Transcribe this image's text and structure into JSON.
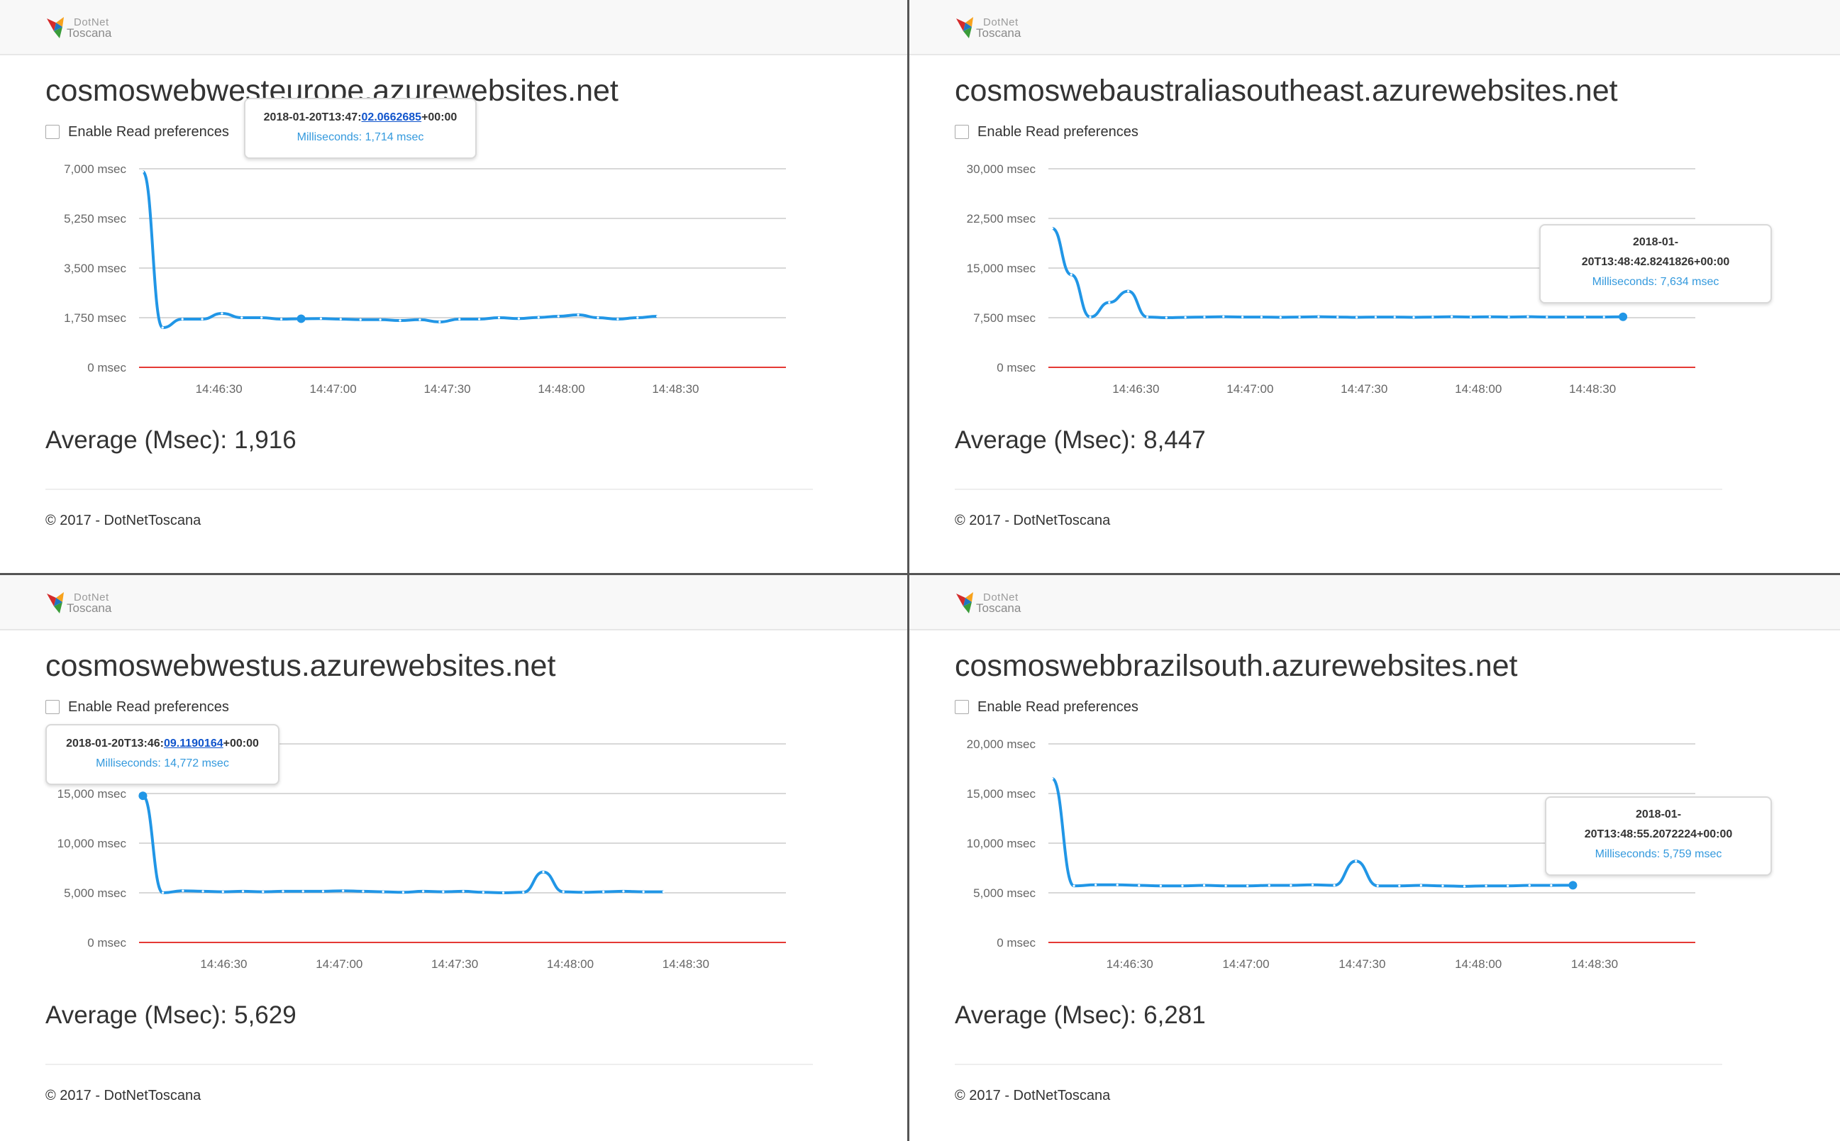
{
  "brand": {
    "top": "DotNet",
    "bottom": "Toscana"
  },
  "checkbox_label": "Enable Read preferences",
  "average_label": "Average (Msec):",
  "footer_text": "© 2017 - DotNetToscana",
  "colors": {
    "line": "#2196e6",
    "baseline": "#e53935",
    "grid": "#cccccc"
  },
  "panels": [
    {
      "title": "cosmoswebwesteurope.azurewebsites.net",
      "average": "1,916",
      "tooltip": {
        "date_prefix": "2018-01-20T13:47:",
        "date_seconds": "02.0662685",
        "date_suffix": "+00:00",
        "value_text": "Milliseconds: 1,714 msec"
      },
      "chart_data": {
        "type": "line",
        "x_start": "14:46:10",
        "x_interval_seconds": 5.2,
        "ylim": [
          0,
          7000
        ],
        "y_ticks": [
          "7,000 msec",
          "5,250 msec",
          "3,500 msec",
          "1,750 msec",
          "0 msec"
        ],
        "x_ticks": [
          "14:46:30",
          "14:47:00",
          "14:47:30",
          "14:48:00",
          "14:48:30"
        ],
        "series": [
          {
            "values": [
              6900,
              1400,
              1700,
              1700,
              1900,
              1750,
              1750,
              1700,
              1714,
              1720,
              1700,
              1680,
              1680,
              1650,
              1680,
              1600,
              1700,
              1700,
              1750,
              1720,
              1760,
              1800,
              1850,
              1750,
              1700,
              1750,
              1800
            ]
          }
        ],
        "tooltip_index": 8
      }
    },
    {
      "title": "cosmoswebaustraliasoutheast.azurewebsites.net",
      "average": "8,447",
      "tooltip": {
        "date_prefix": "2018-01-\n20T13:48:42.8241826+00:00",
        "date_seconds": "",
        "date_suffix": "",
        "value_text": "Milliseconds: 7,634 msec"
      },
      "chart_data": {
        "type": "line",
        "x_start": "14:46:08",
        "x_interval_seconds": 5,
        "ylim": [
          0,
          30000
        ],
        "y_ticks": [
          "30,000 msec",
          "22,500 msec",
          "15,000 msec",
          "7,500 msec",
          "0 msec"
        ],
        "x_ticks": [
          "14:46:30",
          "14:47:00",
          "14:47:30",
          "14:48:00",
          "14:48:30"
        ],
        "series": [
          {
            "values": [
              21000,
              14000,
              7600,
              9800,
              11500,
              7600,
              7500,
              7550,
              7600,
              7650,
              7600,
              7600,
              7550,
              7600,
              7650,
              7600,
              7550,
              7600,
              7600,
              7550,
              7600,
              7650,
              7600,
              7634,
              7600,
              7650,
              7600,
              7600,
              7600,
              7600,
              7634
            ]
          }
        ],
        "tooltip_index": 30
      }
    },
    {
      "title": "cosmoswebwestus.azurewebsites.net",
      "average": "5,629",
      "tooltip": {
        "date_prefix": "2018-01-20T13:46:",
        "date_seconds": "09.1190164",
        "date_suffix": "+00:00",
        "value_text": "Milliseconds: 14,772 msec"
      },
      "chart_data": {
        "type": "line",
        "x_start": "14:46:09",
        "x_interval_seconds": 5.2,
        "ylim": [
          0,
          20000
        ],
        "y_ticks": [
          "",
          "15,000 msec",
          "10,000 msec",
          "5,000 msec",
          "0 msec"
        ],
        "x_ticks": [
          "14:46:30",
          "14:47:00",
          "14:47:30",
          "14:48:00",
          "14:48:30"
        ],
        "series": [
          {
            "values": [
              14772,
              5000,
              5200,
              5150,
              5100,
              5150,
              5100,
              5150,
              5150,
              5150,
              5200,
              5150,
              5100,
              5050,
              5150,
              5100,
              5150,
              5050,
              5000,
              5050,
              7100,
              5100,
              5050,
              5100,
              5150,
              5100,
              5100
            ]
          }
        ],
        "tooltip_index": 0
      }
    },
    {
      "title": "cosmoswebbrazilsouth.azurewebsites.net",
      "average": "6,281",
      "tooltip": {
        "date_prefix": "2018-01-\n20T13:48:55.2072224+00:00",
        "date_seconds": "",
        "date_suffix": "",
        "value_text": "Milliseconds: 5,759 msec"
      },
      "chart_data": {
        "type": "line",
        "x_start": "14:46:10",
        "x_interval_seconds": 5.6,
        "ylim": [
          0,
          20000
        ],
        "y_ticks": [
          "20,000 msec",
          "15,000 msec",
          "10,000 msec",
          "5,000 msec",
          "0 msec"
        ],
        "x_ticks": [
          "14:46:30",
          "14:47:00",
          "14:47:30",
          "14:48:00",
          "14:48:30"
        ],
        "series": [
          {
            "values": [
              16500,
              5700,
              5800,
              5800,
              5750,
              5700,
              5700,
              5750,
              5700,
              5700,
              5750,
              5750,
              5800,
              5750,
              8200,
              5700,
              5700,
              5750,
              5700,
              5650,
              5700,
              5700,
              5750,
              5750,
              5759
            ]
          }
        ],
        "tooltip_index": 24
      }
    }
  ]
}
